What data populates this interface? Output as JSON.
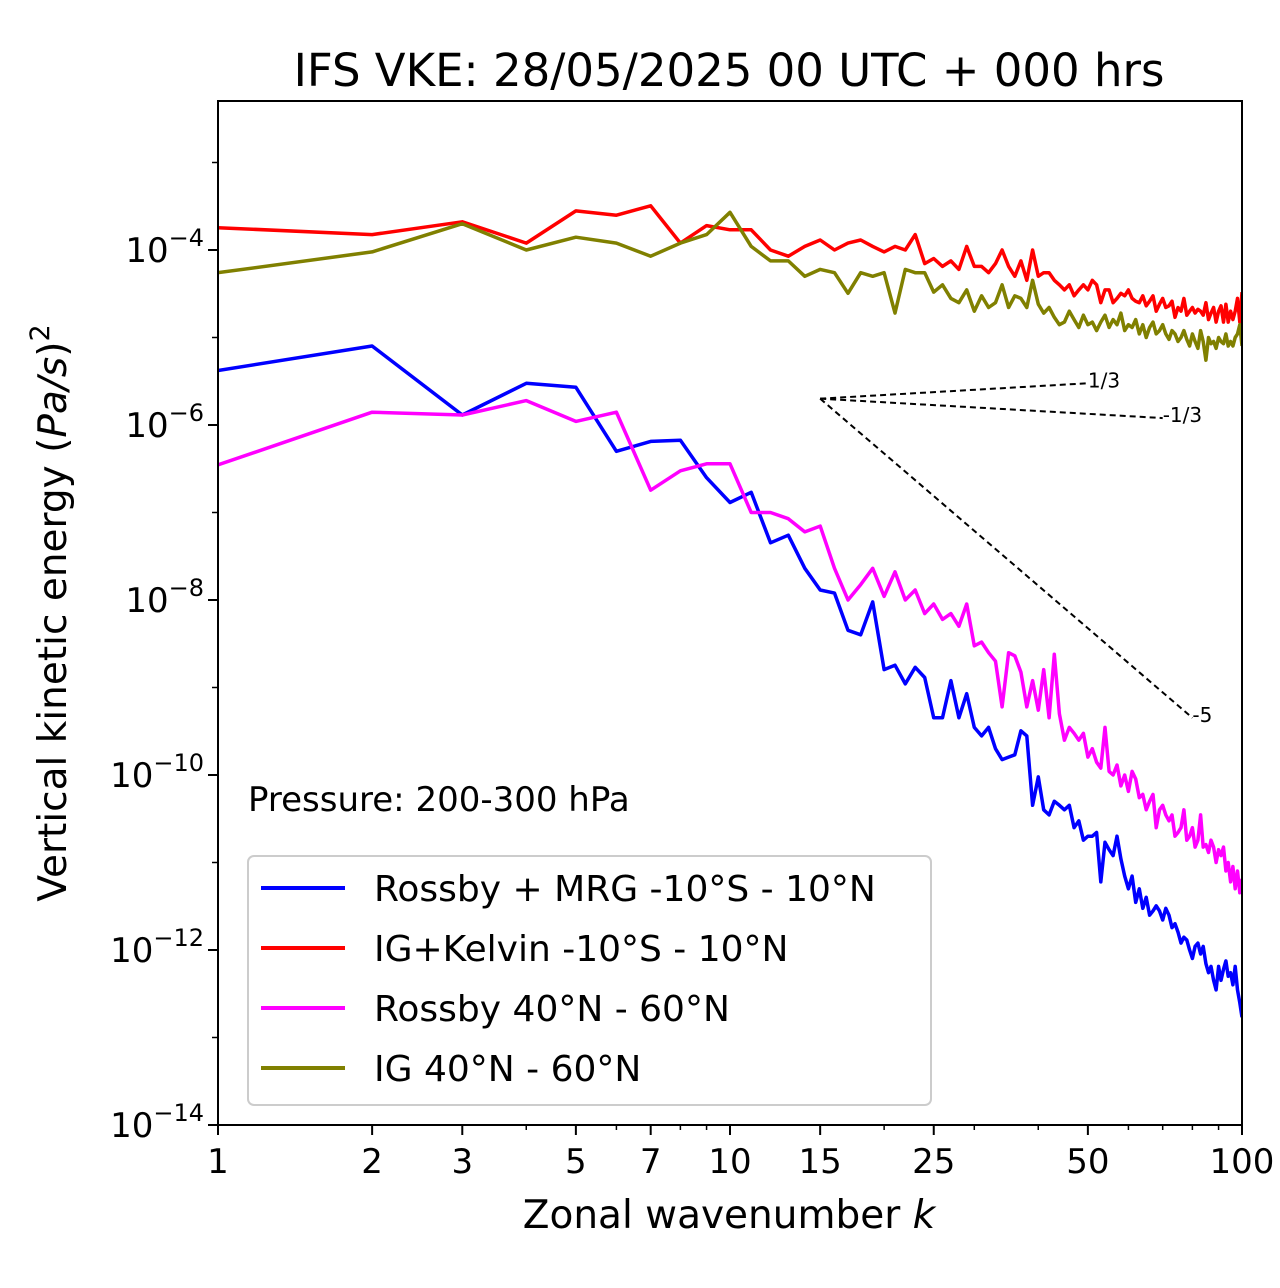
{
  "chart_data": {
    "type": "line",
    "title": "IFS VKE: 28/05/2025 00 UTC + 000 hrs",
    "xlabel": "Zonal wavenumber ",
    "xlabel_var": "k",
    "ylabel": "Vertical kinetic energy (",
    "ylabel_var": "Pa/s",
    "ylabel_close": ")",
    "ylabel_exp": "2",
    "x_scale": "log",
    "y_scale": "log",
    "xlim": [
      1,
      100
    ],
    "ylim": [
      1e-14,
      0.003
    ],
    "x_ticks": [
      1,
      2,
      3,
      5,
      7,
      10,
      15,
      25,
      50,
      100
    ],
    "x_tick_labels": [
      "1",
      "2",
      "3",
      "5",
      "7",
      "10",
      "15",
      "25",
      "50",
      "100"
    ],
    "y_ticks": [
      -4,
      -6,
      -8,
      -10,
      -12,
      -14
    ],
    "y_tick_base": "10",
    "y_tick_exps": [
      "−4",
      "−6",
      "−8",
      "−10",
      "−12",
      "−14"
    ],
    "grid": false,
    "annotation": "Pressure: 200-300 hPa",
    "legend_position": "lower-left",
    "series": [
      {
        "name": "Rossby + MRG -10°S - 10°N",
        "color": "#0000ff",
        "x": [
          1,
          2,
          3,
          4,
          5,
          6,
          7,
          8,
          9,
          10,
          11,
          12,
          13,
          14,
          15,
          16,
          17,
          18,
          19,
          20,
          21,
          22,
          23,
          24,
          25,
          26,
          27,
          28,
          29,
          30,
          31,
          32,
          33,
          34,
          35,
          36,
          37,
          38,
          39,
          40,
          41,
          42,
          43,
          44,
          45,
          46,
          47,
          48,
          49,
          50,
          51,
          52,
          53,
          54,
          55,
          56,
          57,
          58,
          59,
          60,
          61,
          62,
          63,
          64,
          65,
          66,
          67,
          68,
          69,
          70,
          71,
          72,
          73,
          74,
          75,
          76,
          77,
          78,
          79,
          80,
          81,
          82,
          83,
          84,
          85,
          86,
          87,
          88,
          89,
          90,
          91,
          92,
          93,
          94,
          95,
          96,
          97,
          98,
          99,
          100
        ],
        "y": [
          4.2e-06,
          8e-06,
          1.3e-06,
          3e-06,
          2.7e-06,
          5e-07,
          6.5e-07,
          6.7e-07,
          2.5e-07,
          1.3e-07,
          1.7e-07,
          4.5e-08,
          5.5e-08,
          2.3e-08,
          1.3e-08,
          1.2e-08,
          4.5e-09,
          4e-09,
          9.5e-09,
          1.6e-09,
          1.8e-09,
          1.1e-09,
          1.7e-09,
          1.3e-09,
          4.5e-10,
          4.5e-10,
          1.2e-09,
          4.5e-10,
          8.5e-10,
          3.5e-10,
          2.8e-10,
          3.5e-10,
          2e-10,
          1.5e-10,
          1.6e-10,
          1.7e-10,
          3.2e-10,
          2.8e-10,
          4.5e-11,
          9.5e-11,
          4e-11,
          3.5e-11,
          5e-11,
          4.5e-11,
          4e-11,
          4.5e-11,
          2.5e-11,
          3e-11,
          1.8e-11,
          2e-11,
          2e-11,
          2.2e-11,
          6e-12,
          1.7e-11,
          1.4e-11,
          1.2e-11,
          2e-11,
          1.1e-11,
          7e-12,
          5e-12,
          7e-12,
          3.5e-12,
          5e-12,
          3e-12,
          4e-12,
          2.5e-12,
          2.8e-12,
          3.2e-12,
          2.8e-12,
          2.2e-12,
          3e-12,
          2.5e-12,
          1.8e-12,
          2e-12,
          1.6e-12,
          1.2e-12,
          1.4e-12,
          1.3e-12,
          1e-12,
          8e-13,
          1.1e-12,
          1.2e-12,
          9e-13,
          1.1e-12,
          7e-13,
          5.5e-13,
          6.5e-13,
          4.5e-13,
          3.5e-13,
          6.5e-13,
          4.5e-13,
          6e-13,
          7.5e-13,
          5e-13,
          5.5e-13,
          4e-13,
          6.5e-13,
          3.5e-13,
          2.5e-13,
          1.7e-13
        ]
      },
      {
        "name": "IG+Kelvin -10°S - 10°N",
        "color": "#ff0000",
        "x": [
          1,
          2,
          3,
          4,
          5,
          6,
          7,
          8,
          9,
          10,
          11,
          12,
          13,
          14,
          15,
          16,
          17,
          18,
          19,
          20,
          21,
          22,
          23,
          24,
          25,
          26,
          27,
          28,
          29,
          30,
          31,
          32,
          33,
          34,
          35,
          36,
          37,
          38,
          39,
          40,
          41,
          42,
          43,
          44,
          45,
          46,
          47,
          48,
          49,
          50,
          51,
          52,
          53,
          54,
          55,
          56,
          57,
          58,
          59,
          60,
          61,
          62,
          63,
          64,
          65,
          66,
          67,
          68,
          69,
          70,
          71,
          72,
          73,
          74,
          75,
          76,
          77,
          78,
          79,
          80,
          81,
          82,
          83,
          84,
          85,
          86,
          87,
          88,
          89,
          90,
          91,
          92,
          93,
          94,
          95,
          96,
          97,
          98,
          99,
          100
        ],
        "y": [
          0.00018,
          0.00015,
          0.00021,
          0.00012,
          0.00028,
          0.00025,
          0.00032,
          0.00012,
          0.00019,
          0.00017,
          0.00017,
          0.0001,
          8.5e-05,
          0.00011,
          0.00013,
          0.0001,
          0.00012,
          0.00013,
          0.00011,
          9.5e-05,
          0.00011,
          0.0001,
          0.00015,
          7e-05,
          8e-05,
          6.5e-05,
          7.5e-05,
          6e-05,
          0.00011,
          6.5e-05,
          6.5e-05,
          5.5e-05,
          7e-05,
          0.0001,
          6.5e-05,
          5e-05,
          7.5e-05,
          4.5e-05,
          0.0001,
          5e-05,
          5.5e-05,
          5.5e-05,
          4.5e-05,
          4e-05,
          3.5e-05,
          4e-05,
          3e-05,
          3.5e-05,
          4e-05,
          3.5e-05,
          4.5e-05,
          4e-05,
          2.5e-05,
          3.5e-05,
          3.5e-05,
          2.5e-05,
          2.8e-05,
          3.2e-05,
          3e-05,
          3.5e-05,
          2.8e-05,
          2.6e-05,
          2.5e-05,
          3e-05,
          2.3e-05,
          2.6e-05,
          3e-05,
          2e-05,
          2.4e-05,
          2.8e-05,
          2.2e-05,
          2.3e-05,
          2.6e-05,
          1.7e-05,
          2.2e-05,
          2e-05,
          2.8e-05,
          1.8e-05,
          2e-05,
          2.2e-05,
          1.9e-05,
          2.1e-05,
          2e-05,
          1.8e-05,
          2.5e-05,
          1.6e-05,
          1.9e-05,
          2.2e-05,
          1.5e-05,
          2e-05,
          2.3e-05,
          1.5e-05,
          2.4e-05,
          1.5e-05,
          2e-05,
          1.6e-05,
          2e-05,
          2.8e-05,
          1.5e-05,
          3.3e-05
        ]
      },
      {
        "name": "Rossby 40°N - 60°N",
        "color": "#ff00ff",
        "x": [
          1,
          2,
          3,
          4,
          5,
          6,
          7,
          8,
          9,
          10,
          11,
          12,
          13,
          14,
          15,
          16,
          17,
          18,
          19,
          20,
          21,
          22,
          23,
          24,
          25,
          26,
          27,
          28,
          29,
          30,
          31,
          32,
          33,
          34,
          35,
          36,
          37,
          38,
          39,
          40,
          41,
          42,
          43,
          44,
          45,
          46,
          47,
          48,
          49,
          50,
          51,
          52,
          53,
          54,
          55,
          56,
          57,
          58,
          59,
          60,
          61,
          62,
          63,
          64,
          65,
          66,
          67,
          68,
          69,
          70,
          71,
          72,
          73,
          74,
          75,
          76,
          77,
          78,
          79,
          80,
          81,
          82,
          83,
          84,
          85,
          86,
          87,
          88,
          89,
          90,
          91,
          92,
          93,
          94,
          95,
          96,
          97,
          98,
          99,
          100
        ],
        "y": [
          3.5e-07,
          1.4e-06,
          1.3e-06,
          1.9e-06,
          1.1e-06,
          1.4e-06,
          1.8e-07,
          3e-07,
          3.6e-07,
          3.6e-07,
          1e-07,
          1e-07,
          8.5e-08,
          6e-08,
          7e-08,
          2.3e-08,
          1e-08,
          1.5e-08,
          2.3e-08,
          1.1e-08,
          2.1e-08,
          1e-08,
          1.3e-08,
          7e-09,
          9e-09,
          6e-09,
          7e-09,
          5e-09,
          9e-09,
          3e-09,
          3.3e-09,
          2.5e-09,
          2e-09,
          6e-10,
          2.5e-09,
          2.3e-09,
          1.5e-09,
          6e-10,
          1.2e-09,
          5.5e-10,
          1.6e-09,
          4.5e-10,
          2.4e-09,
          5e-10,
          2.5e-10,
          3.5e-10,
          3e-10,
          2.5e-10,
          3e-10,
          1.6e-10,
          2e-10,
          1.4e-10,
          1.2e-10,
          3.5e-10,
          1.1e-10,
          1e-10,
          1.3e-10,
          7.5e-11,
          1e-10,
          6.5e-11,
          1.1e-10,
          9e-11,
          5.5e-11,
          6e-11,
          4e-11,
          5e-11,
          6e-11,
          2.5e-11,
          4e-11,
          4.5e-11,
          3.5e-11,
          3e-11,
          3.5e-11,
          2e-11,
          2.2e-11,
          2.5e-11,
          4e-11,
          1.8e-11,
          2e-11,
          2.5e-11,
          1.5e-11,
          1.8e-11,
          3.5e-11,
          1.5e-11,
          1.6e-11,
          1.3e-11,
          1.8e-11,
          1.5e-11,
          1e-11,
          1.4e-11,
          1.2e-11,
          1.5e-11,
          8e-12,
          1e-11,
          6e-12,
          9e-12,
          5e-12,
          8e-12,
          4.5e-12,
          6.5e-12
        ]
      },
      {
        "name": "IG 40°N - 60°N",
        "color": "#808000",
        "x": [
          1,
          2,
          3,
          4,
          5,
          6,
          7,
          8,
          9,
          10,
          11,
          12,
          13,
          14,
          15,
          16,
          17,
          18,
          19,
          20,
          21,
          22,
          23,
          24,
          25,
          26,
          27,
          28,
          29,
          30,
          31,
          32,
          33,
          34,
          35,
          36,
          37,
          38,
          39,
          40,
          41,
          42,
          43,
          44,
          45,
          46,
          47,
          48,
          49,
          50,
          51,
          52,
          53,
          54,
          55,
          56,
          57,
          58,
          59,
          60,
          61,
          62,
          63,
          64,
          65,
          66,
          67,
          68,
          69,
          70,
          71,
          72,
          73,
          74,
          75,
          76,
          77,
          78,
          79,
          80,
          81,
          82,
          83,
          84,
          85,
          86,
          87,
          88,
          89,
          90,
          91,
          92,
          93,
          94,
          95,
          96,
          97,
          98,
          99,
          100
        ],
        "y": [
          5.5e-05,
          9.5e-05,
          0.0002,
          0.0001,
          0.00014,
          0.00012,
          8.5e-05,
          0.00012,
          0.00015,
          0.00027,
          0.00011,
          7.5e-05,
          7.5e-05,
          5e-05,
          6e-05,
          5.5e-05,
          3.2e-05,
          5.5e-05,
          5e-05,
          5.5e-05,
          1.9e-05,
          6e-05,
          5.5e-05,
          5.5e-05,
          3.3e-05,
          4e-05,
          2.8e-05,
          2.5e-05,
          3.5e-05,
          2e-05,
          3e-05,
          2.2e-05,
          2.5e-05,
          4e-05,
          2.2e-05,
          3e-05,
          2.8e-05,
          2.2e-05,
          4.5e-05,
          2.4e-05,
          1.9e-05,
          2.2e-05,
          1.7e-05,
          1.4e-05,
          1.5e-05,
          2e-05,
          1.6e-05,
          1.3e-05,
          1.8e-05,
          1.4e-05,
          1.5e-05,
          1.2e-05,
          1.5e-05,
          1.8e-05,
          1.3e-05,
          1.6e-05,
          1.4e-05,
          1.9e-05,
          1.2e-05,
          1.4e-05,
          1.3e-05,
          1.6e-05,
          1.1e-05,
          1.4e-05,
          1e-05,
          1.3e-05,
          1.5e-05,
          1.1e-05,
          1.2e-05,
          1.4e-05,
          1.1e-05,
          9.5e-06,
          1.2e-05,
          1.1e-05,
          9e-06,
          1e-05,
          1.2e-05,
          9.5e-06,
          8e-06,
          1.1e-05,
          9e-06,
          7.5e-06,
          1.2e-05,
          9e-06,
          5.5e-06,
          1e-05,
          8.5e-06,
          9e-06,
          7.5e-06,
          1e-05,
          9e-06,
          8.5e-06,
          1.1e-05,
          8e-06,
          9e-06,
          8e-06,
          1e-05,
          1.1e-05,
          1.4e-05,
          8e-06
        ]
      }
    ],
    "reference_lines": [
      {
        "label": "1/3",
        "x": [
          15,
          50
        ],
        "y": [
          2e-06,
          3e-06
        ]
      },
      {
        "label": "-1/3",
        "x": [
          15,
          70
        ],
        "y": [
          2e-06,
          1.2e-06
        ]
      },
      {
        "label": "-5",
        "x": [
          15,
          80
        ],
        "y": [
          2e-06,
          4.5e-10
        ]
      }
    ]
  }
}
